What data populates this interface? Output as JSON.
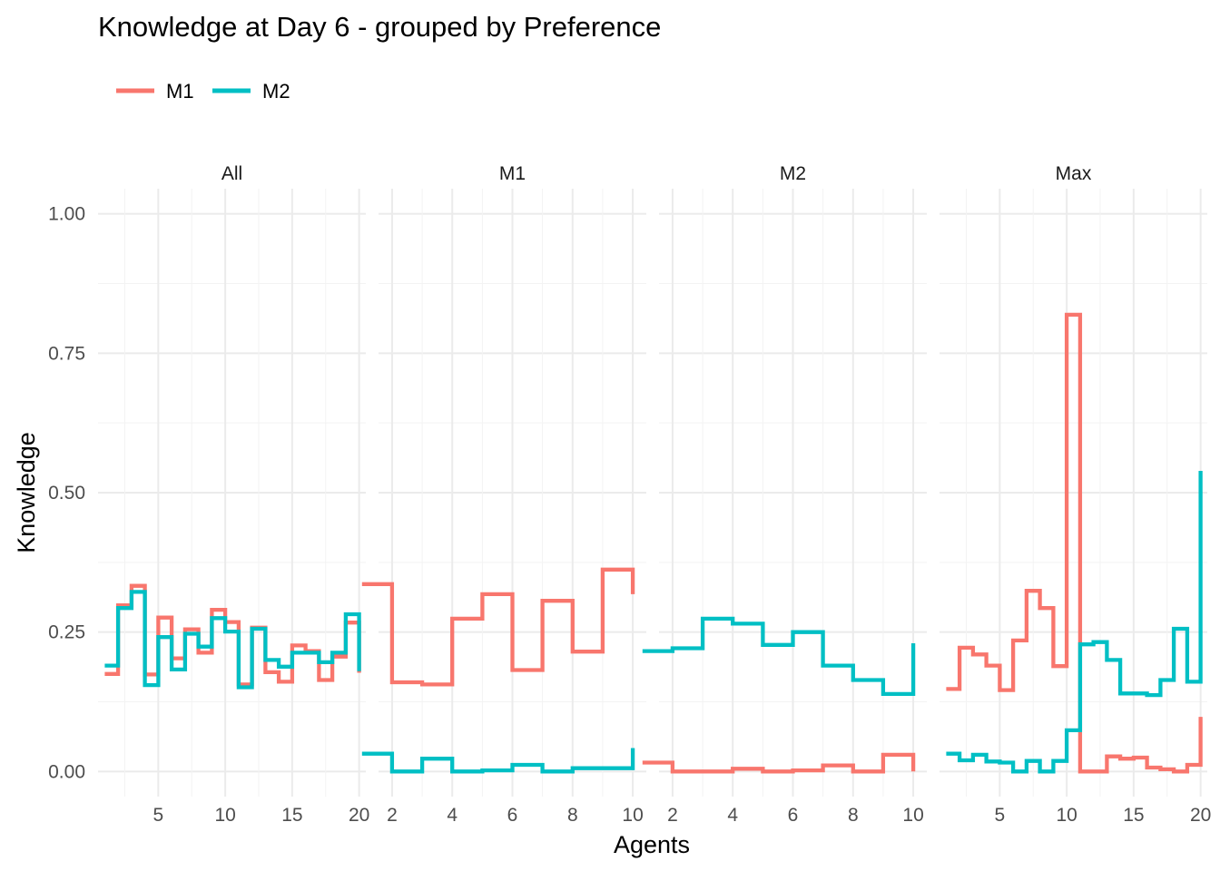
{
  "chart_data": {
    "type": "line",
    "subtype": "step",
    "title": "Knowledge at Day 6 - grouped by Preference",
    "xlabel": "Agents",
    "ylabel": "Knowledge",
    "ylim": [
      -0.045,
      1.045
    ],
    "y_ticks": [
      0.0,
      0.25,
      0.5,
      0.75,
      1.0
    ],
    "y_tick_labels": [
      "0.00",
      "0.25",
      "0.50",
      "0.75",
      "1.00"
    ],
    "legend": {
      "position": "top-left",
      "entries": [
        {
          "name": "M1",
          "color": "#F8766D"
        },
        {
          "name": "M2",
          "color": "#00BFC4"
        }
      ]
    },
    "grid": true,
    "panels": [
      {
        "strip": "All",
        "xlim": [
          0.5,
          20.5
        ],
        "x_ticks": [
          5,
          10,
          15,
          20
        ],
        "series": [
          {
            "name": "M1",
            "color": "#F8766D",
            "x": [
              1,
              2,
              3,
              4,
              5,
              6,
              7,
              8,
              9,
              10,
              11,
              12,
              13,
              14,
              15,
              16,
              17,
              18,
              19,
              20
            ],
            "values": [
              0.175,
              0.298,
              0.333,
              0.174,
              0.276,
              0.203,
              0.255,
              0.213,
              0.29,
              0.268,
              0.156,
              0.258,
              0.178,
              0.161,
              0.226,
              0.216,
              0.164,
              0.206,
              0.267,
              0.177
            ]
          },
          {
            "name": "M2",
            "color": "#00BFC4",
            "x": [
              1,
              2,
              3,
              4,
              5,
              6,
              7,
              8,
              9,
              10,
              11,
              12,
              13,
              14,
              15,
              16,
              17,
              18,
              19,
              20
            ],
            "values": [
              0.19,
              0.293,
              0.322,
              0.155,
              0.241,
              0.183,
              0.247,
              0.224,
              0.275,
              0.251,
              0.151,
              0.256,
              0.2,
              0.188,
              0.213,
              0.213,
              0.196,
              0.213,
              0.282,
              0.18
            ]
          }
        ]
      },
      {
        "strip": "M1",
        "xlim": [
          1.55,
          10.45
        ],
        "x_ticks": [
          2,
          4,
          6,
          8,
          10
        ],
        "series": [
          {
            "name": "M1",
            "color": "#F8766D",
            "x": [
              1,
              2,
              3,
              4,
              5,
              6,
              7,
              8,
              9,
              10
            ],
            "values": [
              0.336,
              0.16,
              0.156,
              0.274,
              0.318,
              0.182,
              0.306,
              0.215,
              0.362,
              0.318
            ]
          },
          {
            "name": "M2",
            "color": "#00BFC4",
            "x": [
              1,
              2,
              3,
              4,
              5,
              6,
              7,
              8,
              9,
              10
            ],
            "values": [
              0.032,
              0.0,
              0.023,
              0.0,
              0.002,
              0.012,
              0.0,
              0.006,
              0.006,
              0.042
            ]
          }
        ]
      },
      {
        "strip": "M2",
        "xlim": [
          1.55,
          10.45
        ],
        "x_ticks": [
          2,
          4,
          6,
          8,
          10
        ],
        "series": [
          {
            "name": "M1",
            "color": "#F8766D",
            "x": [
              1,
              2,
              3,
              4,
              5,
              6,
              7,
              8,
              9,
              10
            ],
            "values": [
              0.016,
              0.0,
              0.0,
              0.005,
              0.0,
              0.002,
              0.011,
              0.0,
              0.03,
              0.0
            ]
          },
          {
            "name": "M2",
            "color": "#00BFC4",
            "x": [
              1,
              2,
              3,
              4,
              5,
              6,
              7,
              8,
              9,
              10
            ],
            "values": [
              0.216,
              0.221,
              0.274,
              0.265,
              0.227,
              0.25,
              0.19,
              0.164,
              0.139,
              0.23
            ]
          }
        ]
      },
      {
        "strip": "Max",
        "xlim": [
          0.5,
          20.5
        ],
        "x_ticks": [
          5,
          10,
          15,
          20
        ],
        "series": [
          {
            "name": "M1",
            "color": "#F8766D",
            "x": [
              1,
              2,
              3,
              4,
              5,
              6,
              7,
              8,
              9,
              10,
              11,
              12,
              13,
              14,
              15,
              16,
              17,
              18,
              19,
              20
            ],
            "values": [
              0.148,
              0.222,
              0.21,
              0.19,
              0.146,
              0.235,
              0.324,
              0.293,
              0.189,
              0.819,
              0.0,
              0.0,
              0.027,
              0.023,
              0.025,
              0.007,
              0.004,
              0.0,
              0.012,
              0.098
            ]
          },
          {
            "name": "M2",
            "color": "#00BFC4",
            "x": [
              1,
              2,
              3,
              4,
              5,
              6,
              7,
              8,
              9,
              10,
              11,
              12,
              13,
              14,
              15,
              16,
              17,
              18,
              19,
              20
            ],
            "values": [
              0.032,
              0.02,
              0.03,
              0.018,
              0.016,
              0.0,
              0.019,
              0.0,
              0.019,
              0.074,
              0.228,
              0.232,
              0.2,
              0.14,
              0.14,
              0.137,
              0.164,
              0.256,
              0.161,
              0.539
            ]
          }
        ]
      }
    ]
  }
}
